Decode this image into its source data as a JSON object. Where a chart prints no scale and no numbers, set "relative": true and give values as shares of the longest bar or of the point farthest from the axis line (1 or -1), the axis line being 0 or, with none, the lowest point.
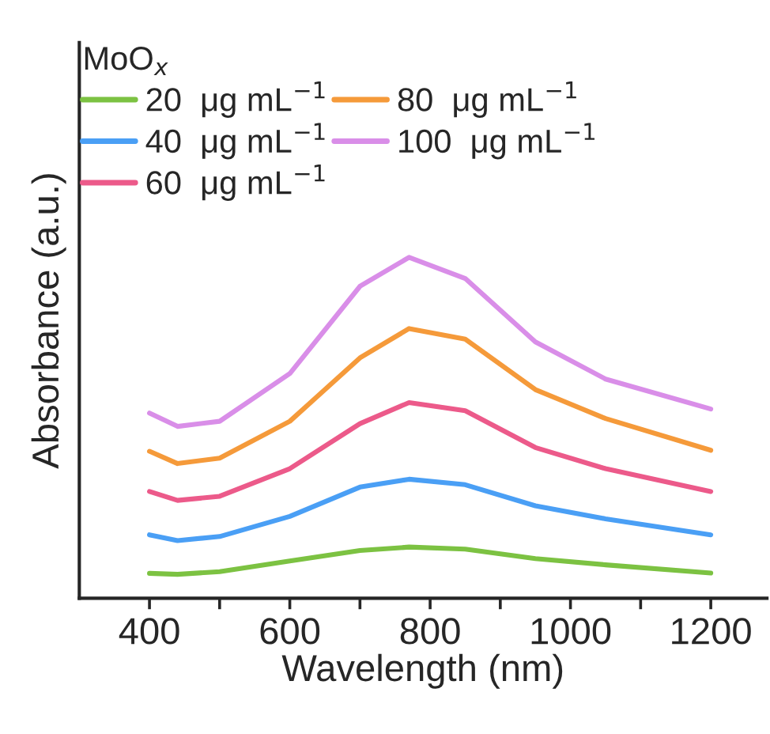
{
  "chart_data": {
    "type": "line",
    "relative": true,
    "xlabel": "Wavelength (nm)",
    "ylabel": "Absorbance (a.u.)",
    "legend_title": "MoO$_{x}$",
    "legend": "top left",
    "grid": false,
    "tick_labels": "x",
    "marker": "none",
    "line_style": "solid",
    "xlim": [
      300,
      1280
    ],
    "xticks": [
      400,
      {
        "value": 500,
        "label": null
      },
      600,
      {
        "value": 700,
        "label": null
      },
      800,
      {
        "value": 900,
        "label": null
      },
      1000,
      {
        "value": 1100,
        "label": null
      },
      1200
    ],
    "x": [
      400,
      440,
      500,
      600,
      700,
      770,
      850,
      950,
      1050,
      1200
    ],
    "series": [
      {
        "name": "20  μg mL$^{−1}$",
        "color": "#7cc242",
        "values": [
          0.073,
          0.07,
          0.078,
          0.109,
          0.14,
          0.15,
          0.144,
          0.116,
          0.098,
          0.074
        ]
      },
      {
        "name": "40  μg mL$^{−1}$",
        "color": "#4a9ff5",
        "values": [
          0.186,
          0.169,
          0.181,
          0.24,
          0.326,
          0.349,
          0.333,
          0.271,
          0.233,
          0.186
        ]
      },
      {
        "name": "60  μg mL$^{−1}$",
        "color": "#ec5a8a",
        "values": [
          0.313,
          0.287,
          0.299,
          0.38,
          0.512,
          0.574,
          0.55,
          0.442,
          0.38,
          0.313
        ]
      },
      {
        "name": "80  μg mL$^{−1}$",
        "color": "#f59a3a",
        "values": [
          0.431,
          0.395,
          0.411,
          0.519,
          0.705,
          0.791,
          0.76,
          0.612,
          0.527,
          0.434
        ]
      },
      {
        "name": "100  μg mL$^{−1}$",
        "color": "#d98ee8",
        "values": [
          0.543,
          0.504,
          0.519,
          0.659,
          0.915,
          1.0,
          0.938,
          0.752,
          0.643,
          0.555
        ]
      }
    ]
  }
}
